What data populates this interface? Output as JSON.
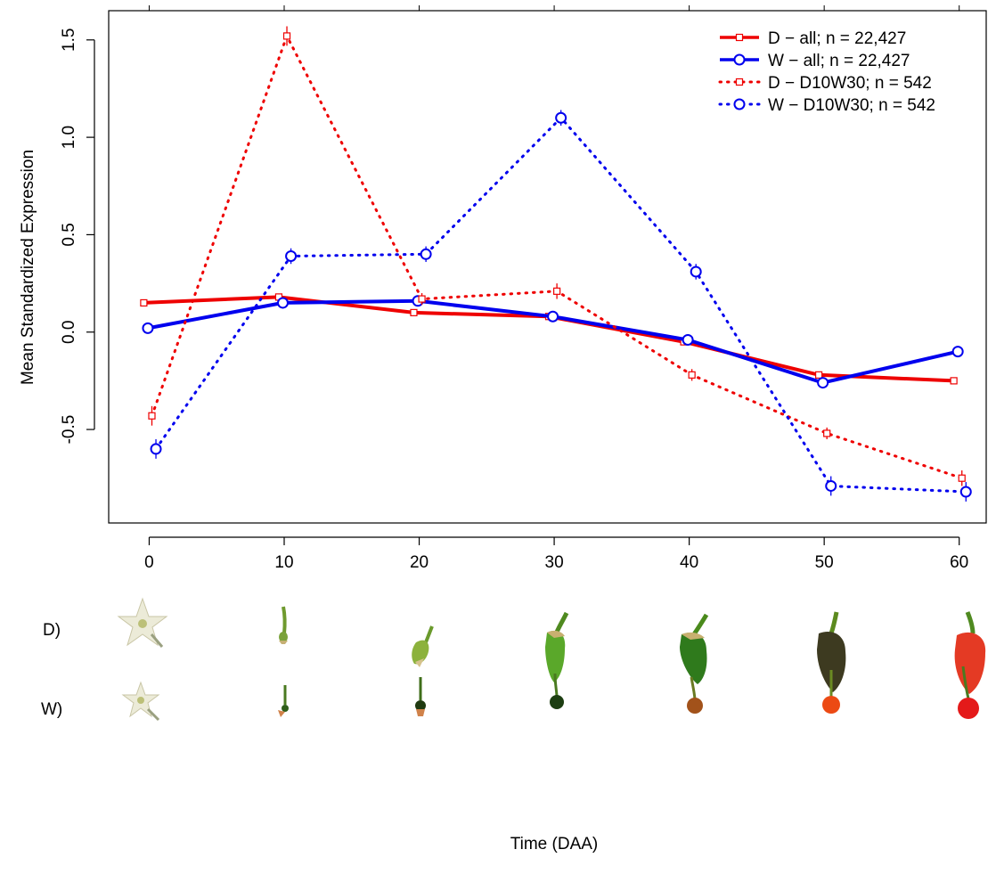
{
  "chart_data": {
    "type": "line",
    "title": "",
    "xlabel": "Time (DAA)",
    "ylabel": "Mean Standardized Expression",
    "x": [
      0,
      10,
      20,
      30,
      40,
      50,
      60
    ],
    "x_ticks": [
      "0",
      "10",
      "20",
      "30",
      "40",
      "50",
      "60"
    ],
    "y_ticks": [
      "-0.5",
      "0.0",
      "0.5",
      "1.0",
      "1.5"
    ],
    "xlim": [
      -3,
      62
    ],
    "ylim": [
      -0.98,
      1.65
    ],
    "grid": false,
    "legend_position": "top-right",
    "series": [
      {
        "name": "D − all; n = 22,427",
        "color": "#ee0000",
        "line": "solid",
        "marker": "square",
        "x": [
          -0.4,
          9.6,
          19.6,
          29.6,
          39.6,
          49.6,
          59.6
        ],
        "values": [
          0.15,
          0.18,
          0.1,
          0.08,
          -0.05,
          -0.22,
          -0.25
        ],
        "errors": [
          0.01,
          0.01,
          0.01,
          0.01,
          0.01,
          0.01,
          0.01
        ]
      },
      {
        "name": "W − all; n = 22,427",
        "color": "#0000ee",
        "line": "solid",
        "marker": "circle",
        "x": [
          -0.1,
          9.9,
          19.9,
          29.9,
          39.9,
          49.9,
          59.9
        ],
        "values": [
          0.02,
          0.15,
          0.16,
          0.08,
          -0.04,
          -0.26,
          -0.1
        ],
        "errors": [
          0.01,
          0.01,
          0.01,
          0.01,
          0.01,
          0.01,
          0.01
        ]
      },
      {
        "name": "D −  D10W30; n = 542",
        "color": "#ee0000",
        "line": "dotted",
        "marker": "square",
        "x": [
          0.2,
          10.2,
          20.2,
          30.2,
          40.2,
          50.2,
          60.2
        ],
        "values": [
          -0.43,
          1.52,
          0.17,
          0.21,
          -0.22,
          -0.52,
          -0.75
        ],
        "errors": [
          0.05,
          0.05,
          0.03,
          0.04,
          0.03,
          0.03,
          0.04
        ]
      },
      {
        "name": "W − D10W30; n = 542",
        "color": "#0000ee",
        "line": "dotted",
        "marker": "circle",
        "x": [
          0.5,
          10.5,
          20.5,
          30.5,
          40.5,
          50.5,
          60.5
        ],
        "values": [
          -0.6,
          0.39,
          0.4,
          1.1,
          0.31,
          -0.79,
          -0.82
        ],
        "errors": [
          0.05,
          0.04,
          0.04,
          0.04,
          0.04,
          0.05,
          0.05
        ]
      }
    ]
  },
  "photo_rows": [
    {
      "label": "D)",
      "stages": [
        "flower",
        "fruit-10",
        "fruit-20",
        "fruit-30",
        "fruit-40",
        "fruit-50",
        "fruit-60"
      ]
    },
    {
      "label": "W)",
      "stages": [
        "flower",
        "fruit-10",
        "fruit-20",
        "fruit-30",
        "fruit-40",
        "fruit-50",
        "fruit-60"
      ]
    }
  ],
  "colors": {
    "red": "#ee0000",
    "blue": "#0000ee",
    "frame": "#000000"
  }
}
